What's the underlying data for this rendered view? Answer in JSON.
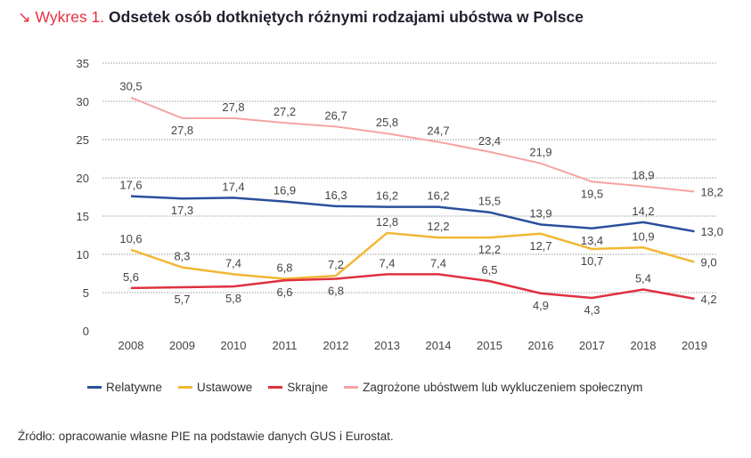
{
  "title": {
    "prefix": "↘ Wykres 1.",
    "text": "Odsetek osób dotkniętych różnymi rodzajami ubóstwa w Polsce"
  },
  "chart_data": {
    "type": "line",
    "title": "Odsetek osób dotkniętych różnymi rodzajami ubóstwa w Polsce",
    "xlabel": "",
    "ylabel": "",
    "categories": [
      "2008",
      "2009",
      "2010",
      "2011",
      "2012",
      "2013",
      "2014",
      "2015",
      "2016",
      "2017",
      "2018",
      "2019"
    ],
    "ylim": [
      0,
      35
    ],
    "yticks": [
      0,
      5,
      10,
      15,
      20,
      25,
      30,
      35
    ],
    "grid": true,
    "legend_position": "bottom",
    "series": [
      {
        "name": "Relatywne",
        "color": "#2b4f9c",
        "values": [
          17.6,
          17.3,
          17.4,
          16.9,
          16.3,
          16.2,
          16.2,
          15.5,
          13.9,
          13.4,
          14.2,
          13.0
        ]
      },
      {
        "name": "Ustawowe",
        "color": "#f2b734",
        "values": [
          10.6,
          8.3,
          7.4,
          6.8,
          7.2,
          12.8,
          12.2,
          12.2,
          12.7,
          10.7,
          10.9,
          9.0
        ]
      },
      {
        "name": "Skrajne",
        "color": "#e0303f",
        "values": [
          5.6,
          5.7,
          5.8,
          6.6,
          6.8,
          7.4,
          7.4,
          6.5,
          4.9,
          4.3,
          5.4,
          4.2
        ]
      },
      {
        "name": "Zagrożone ubóstwem lub wykluczeniem społecznym",
        "color": "#f5a3a3",
        "values": [
          30.5,
          27.8,
          27.8,
          27.2,
          26.7,
          25.8,
          24.7,
          23.4,
          21.9,
          19.5,
          18.9,
          18.2
        ]
      }
    ]
  },
  "source": "Źródło: opracowanie własne PIE na podstawie danych GUS i Eurostat."
}
